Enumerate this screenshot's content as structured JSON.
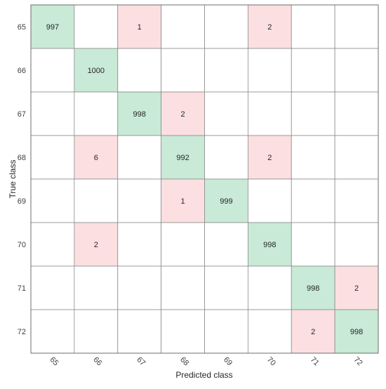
{
  "chart_data": {
    "type": "heatmap",
    "title": "",
    "xlabel": "Predicted class",
    "ylabel": "True class",
    "row_labels": [
      "65",
      "66",
      "67",
      "68",
      "69",
      "70",
      "71",
      "72"
    ],
    "col_labels": [
      "65",
      "66",
      "67",
      "68",
      "69",
      "70",
      "71",
      "72"
    ],
    "matrix": [
      [
        997,
        null,
        1,
        null,
        null,
        2,
        null,
        null
      ],
      [
        null,
        1000,
        null,
        null,
        null,
        null,
        null,
        null
      ],
      [
        null,
        null,
        998,
        2,
        null,
        null,
        null,
        null
      ],
      [
        null,
        6,
        null,
        992,
        null,
        2,
        null,
        null
      ],
      [
        null,
        null,
        null,
        1,
        999,
        null,
        null,
        null
      ],
      [
        null,
        2,
        null,
        null,
        null,
        998,
        null,
        null
      ],
      [
        null,
        null,
        null,
        null,
        null,
        null,
        998,
        2
      ],
      [
        null,
        null,
        null,
        null,
        null,
        null,
        2,
        998
      ]
    ],
    "colors": {
      "correct": "#c8ead6",
      "incorrect": "#fbdfe1",
      "empty": "#ffffff",
      "grid": "#8c8c8c"
    }
  }
}
